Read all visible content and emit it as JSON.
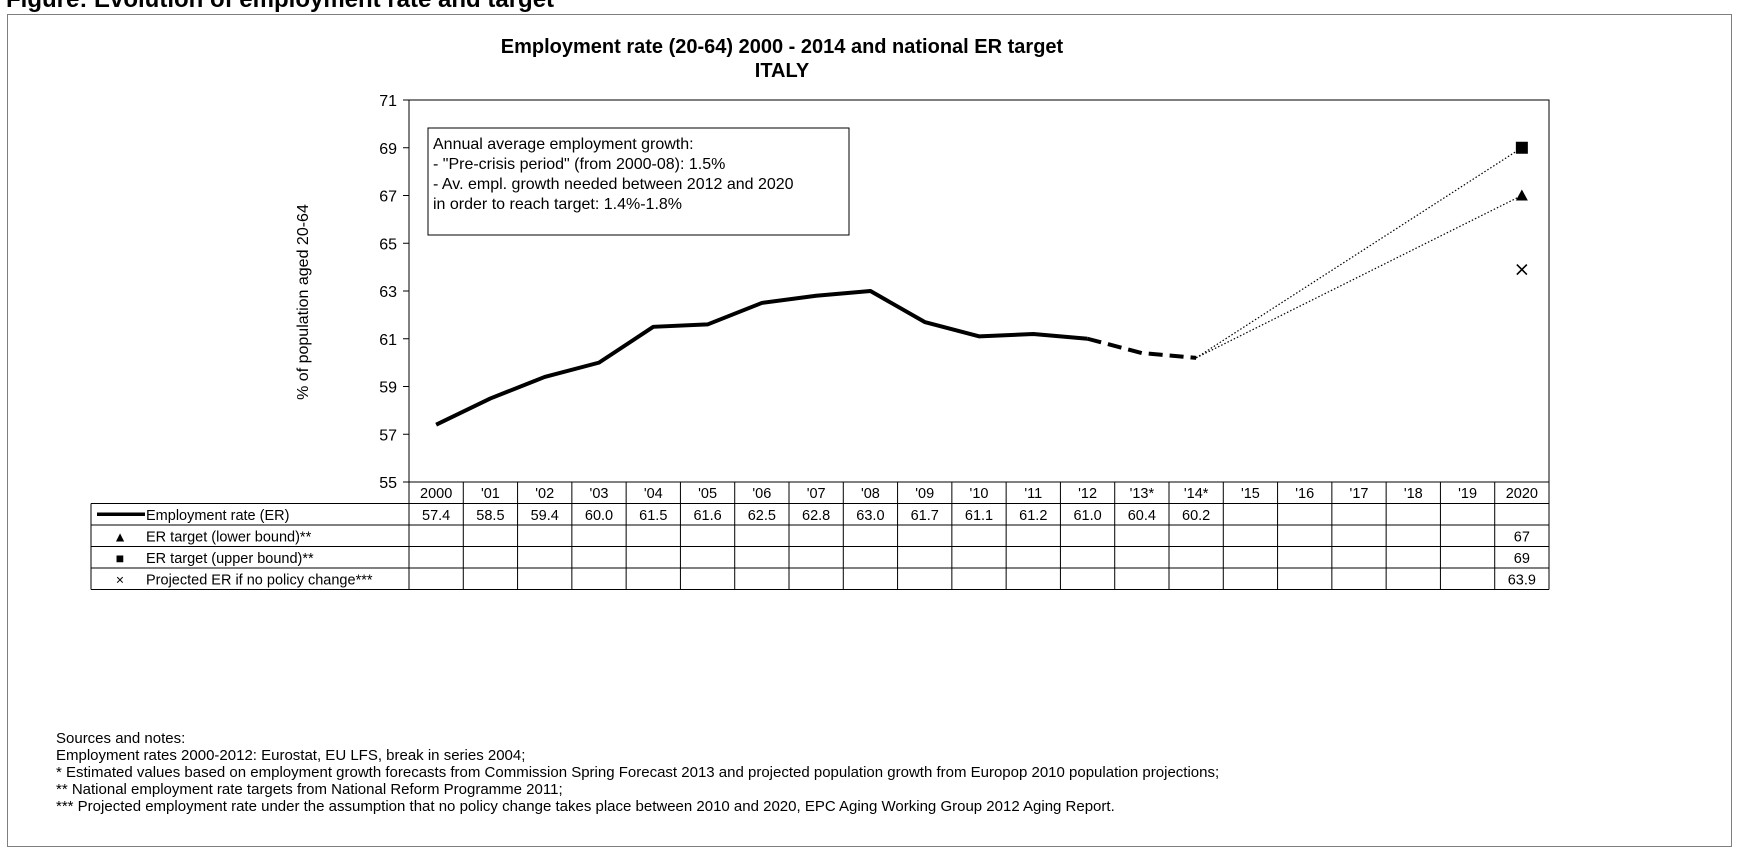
{
  "page": {
    "heading": "Figure: Evolution of employment rate and target"
  },
  "chart_data": {
    "type": "line",
    "title": "Employment rate (20-64) 2000 - 2014 and national ER target",
    "subtitle": "ITALY",
    "ylabel": "% of population aged 20-64",
    "ylim": [
      55,
      71
    ],
    "yticks": [
      55,
      57,
      59,
      61,
      63,
      65,
      67,
      69,
      71
    ],
    "grid": false,
    "categories": [
      "2000",
      "'01",
      "'02",
      "'03",
      "'04",
      "'05",
      "'06",
      "'07",
      "'08",
      "'09",
      "'10",
      "'11",
      "'12",
      "'13*",
      "'14*",
      "'15",
      "'16",
      "'17",
      "'18",
      "'19",
      "2020"
    ],
    "series": [
      {
        "name": "Employment rate (ER)",
        "marker": "line",
        "values": [
          57.4,
          58.5,
          59.4,
          60.0,
          61.5,
          61.6,
          62.5,
          62.8,
          63.0,
          61.7,
          61.1,
          61.2,
          61.0,
          60.4,
          60.2,
          null,
          null,
          null,
          null,
          null,
          null
        ],
        "labels": [
          "57.4",
          "58.5",
          "59.4",
          "60.0",
          "61.5",
          "61.6",
          "62.5",
          "62.8",
          "63.0",
          "61.7",
          "61.1",
          "61.2",
          "61.0",
          "60.4",
          "60.2",
          "",
          "",
          "",
          "",
          "",
          ""
        ]
      },
      {
        "name": "ER target (lower bound)**",
        "marker": "triangle",
        "symbol": "▲",
        "values": [
          null,
          null,
          null,
          null,
          null,
          null,
          null,
          null,
          null,
          null,
          null,
          null,
          null,
          null,
          null,
          null,
          null,
          null,
          null,
          null,
          67
        ],
        "labels": [
          "",
          "",
          "",
          "",
          "",
          "",
          "",
          "",
          "",
          "",
          "",
          "",
          "",
          "",
          "",
          "",
          "",
          "",
          "",
          "",
          "67"
        ]
      },
      {
        "name": "ER target (upper bound)**",
        "marker": "square",
        "symbol": "■",
        "values": [
          null,
          null,
          null,
          null,
          null,
          null,
          null,
          null,
          null,
          null,
          null,
          null,
          null,
          null,
          null,
          null,
          null,
          null,
          null,
          null,
          69
        ],
        "labels": [
          "",
          "",
          "",
          "",
          "",
          "",
          "",
          "",
          "",
          "",
          "",
          "",
          "",
          "",
          "",
          "",
          "",
          "",
          "",
          "",
          "69"
        ]
      },
      {
        "name": "Projected ER if no policy change***",
        "marker": "cross",
        "symbol": "×",
        "values": [
          null,
          null,
          null,
          null,
          null,
          null,
          null,
          null,
          null,
          null,
          null,
          null,
          null,
          null,
          null,
          null,
          null,
          null,
          null,
          null,
          63.9
        ],
        "labels": [
          "",
          "",
          "",
          "",
          "",
          "",
          "",
          "",
          "",
          "",
          "",
          "",
          "",
          "",
          "",
          "",
          "",
          "",
          "",
          "",
          "63.9"
        ]
      }
    ],
    "annotation": [
      "Annual average employment growth:",
      "- \"Pre-crisis period\" (from 2000-08): 1.5%",
      "- Av. empl. growth needed between 2012 and 2020",
      "in order to reach target: 1.4%-1.8%"
    ],
    "legend": "data-table"
  },
  "notes": [
    "Sources and notes:",
    "Employment rates 2000-2012: Eurostat, EU LFS, break in series 2004;",
    "* Estimated values based on employment growth forecasts from Commission Spring Forecast 2013 and projected population growth from Europop 2010 population projections;",
    "** National employment rate targets from National Reform Programme 2011;",
    "*** Projected employment rate under the assumption that no policy change takes place between 2010 and 2020, EPC Aging Working Group 2012 Aging Report."
  ]
}
